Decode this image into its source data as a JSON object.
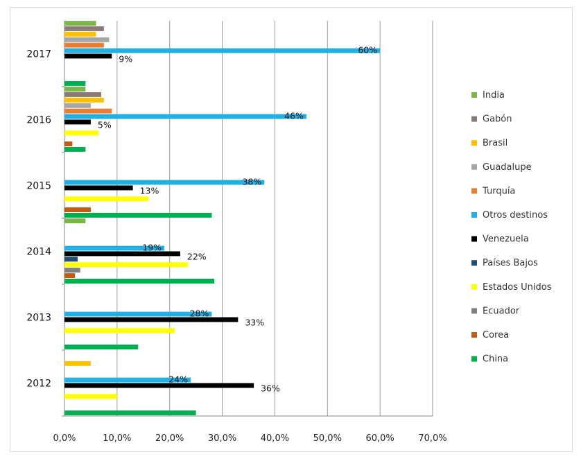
{
  "chart_data": {
    "type": "bar",
    "orientation": "horizontal",
    "categories": [
      "2012",
      "2013",
      "2014",
      "2015",
      "2016",
      "2017"
    ],
    "xlim": [
      0,
      70
    ],
    "x_tick_labels": [
      "0,0%",
      "10,0%",
      "20,0%",
      "30,0%",
      "40,0%",
      "50,0%",
      "60,0%",
      "70,0%"
    ],
    "grid": true,
    "legend_position": "right",
    "series": [
      {
        "name": "India",
        "color": "#7ab648",
        "values": [
          null,
          null,
          4,
          null,
          4,
          6
        ],
        "labels": [
          null,
          null,
          null,
          null,
          null,
          null
        ]
      },
      {
        "name": "Gabón",
        "color": "#8c7b74",
        "values": [
          null,
          null,
          null,
          null,
          7,
          7.5
        ],
        "labels": [
          null,
          null,
          null,
          null,
          null,
          null
        ]
      },
      {
        "name": "Brasil",
        "color": "#ffc000",
        "values": [
          5,
          null,
          null,
          null,
          7.5,
          6
        ],
        "labels": [
          null,
          null,
          null,
          null,
          null,
          null
        ]
      },
      {
        "name": "Guadalupe",
        "color": "#a6a6a6",
        "values": [
          null,
          null,
          null,
          null,
          5,
          8.5
        ],
        "labels": [
          null,
          null,
          null,
          null,
          null,
          null
        ]
      },
      {
        "name": "Turquía",
        "color": "#ed7d31",
        "values": [
          null,
          null,
          null,
          null,
          9,
          7.5
        ],
        "labels": [
          null,
          null,
          null,
          null,
          null,
          null
        ]
      },
      {
        "name": "Otros destinos",
        "color": "#1fb0e6",
        "values": [
          24,
          28,
          19,
          38,
          46,
          60
        ],
        "labels": [
          "24%",
          "28%",
          "19%",
          "38%",
          "46%",
          "60%"
        ]
      },
      {
        "name": "Venezuela",
        "color": "#000000",
        "values": [
          36,
          33,
          22,
          13,
          5,
          9
        ],
        "labels": [
          "36%",
          "33%",
          "22%",
          "13%",
          "5%",
          "9%"
        ]
      },
      {
        "name": "Países Bajos",
        "color": "#1f4e79",
        "values": [
          null,
          null,
          2.5,
          null,
          null,
          null
        ],
        "labels": [
          null,
          null,
          null,
          null,
          null,
          null
        ]
      },
      {
        "name": "Estados Unidos",
        "color": "#ffff00",
        "values": [
          10,
          21,
          23.5,
          16,
          6.5,
          null
        ],
        "labels": [
          null,
          null,
          null,
          null,
          null,
          null
        ]
      },
      {
        "name": "Ecuador",
        "color": "#808080",
        "values": [
          null,
          null,
          3,
          null,
          null,
          null
        ],
        "labels": [
          null,
          null,
          null,
          null,
          null,
          null
        ]
      },
      {
        "name": "Corea",
        "color": "#c55a11",
        "values": [
          null,
          null,
          2,
          5,
          1.5,
          null
        ],
        "labels": [
          null,
          null,
          null,
          null,
          null,
          null
        ]
      },
      {
        "name": "China",
        "color": "#00b050",
        "values": [
          25,
          14,
          28.5,
          28,
          4,
          4
        ],
        "labels": [
          null,
          null,
          null,
          null,
          null,
          null
        ]
      }
    ]
  }
}
